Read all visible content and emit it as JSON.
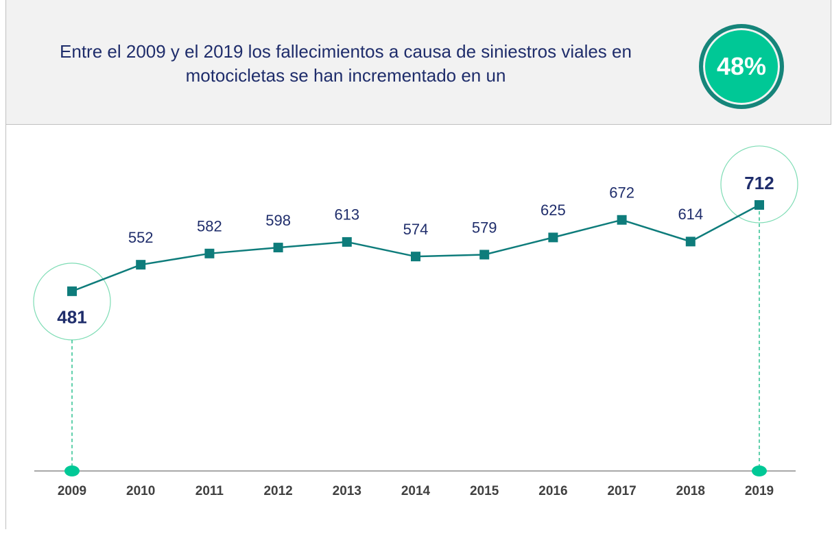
{
  "chart_data": {
    "type": "line",
    "title": "Entre el 2009 y el 2019 los fallecimientos a causa de siniestros viales en motocicletas se han incrementado en un",
    "annotation": "48%",
    "categories": [
      "2009",
      "2010",
      "2011",
      "2012",
      "2013",
      "2014",
      "2015",
      "2016",
      "2017",
      "2018",
      "2019"
    ],
    "values": [
      481,
      552,
      582,
      598,
      613,
      574,
      579,
      625,
      672,
      614,
      712
    ],
    "color": "#0e7c7b",
    "ylim": [
      0,
      800
    ]
  }
}
